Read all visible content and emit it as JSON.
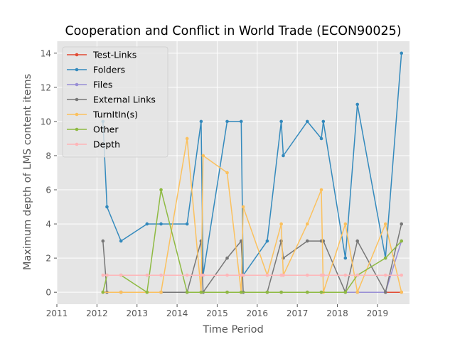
{
  "chart_data": {
    "type": "line",
    "title": "Cooperation and Conflict in World Trade (ECON90025)",
    "xlabel": "Time Period",
    "ylabel": "Maximum depth of LMS content items",
    "xlim": [
      2011,
      2019.8
    ],
    "ylim": [
      -0.7,
      14.7
    ],
    "x_ticks": [
      2011,
      2012,
      2013,
      2014,
      2015,
      2016,
      2017,
      2018,
      2019
    ],
    "x_tick_labels": [
      "2011",
      "2012",
      "2013",
      "2014",
      "2015",
      "2016",
      "2017",
      "2018",
      "2019"
    ],
    "y_ticks": [
      0,
      2,
      4,
      6,
      8,
      10,
      12,
      14
    ],
    "y_tick_labels": [
      "0",
      "2",
      "4",
      "6",
      "8",
      "10",
      "12",
      "14"
    ],
    "grid": true,
    "legend_position": "top-left",
    "plot_background": "#e5e5e5",
    "series": [
      {
        "name": "Test-Links",
        "color": "#e24a33",
        "x": [
          2012.15,
          2012.6,
          2013.25,
          2013.6,
          2014.25,
          2014.6,
          2015.25,
          2015.6,
          2016.25,
          2016.6,
          2017.25,
          2017.6,
          2018.2,
          2018.5,
          2019.2,
          2019.6
        ],
        "y": [
          0,
          0,
          0,
          0,
          0,
          0,
          0,
          0,
          0,
          0,
          0,
          0,
          0,
          0,
          0,
          0
        ]
      },
      {
        "name": "Folders",
        "color": "#348abd",
        "x": [
          2012.15,
          2012.25,
          2012.6,
          2013.25,
          2013.6,
          2014.25,
          2014.6,
          2014.65,
          2015.25,
          2015.6,
          2015.65,
          2016.25,
          2016.6,
          2016.65,
          2017.25,
          2017.6,
          2017.65,
          2018.2,
          2018.5,
          2019.2,
          2019.6
        ],
        "y": [
          10,
          5,
          3,
          4,
          4,
          4,
          10,
          1,
          10,
          10,
          1,
          3,
          10,
          8,
          10,
          9,
          10,
          2,
          11,
          2,
          14
        ]
      },
      {
        "name": "Files",
        "color": "#988ed5",
        "x": [
          2012.15,
          2012.6,
          2013.25,
          2013.6,
          2014.25,
          2014.6,
          2015.25,
          2015.6,
          2016.25,
          2016.6,
          2017.25,
          2017.6,
          2018.2,
          2018.5,
          2019.2,
          2019.6
        ],
        "y": [
          0,
          0,
          0,
          0,
          0,
          0,
          0,
          0,
          0,
          0,
          0,
          0,
          0,
          0,
          0,
          3
        ]
      },
      {
        "name": "External Links",
        "color": "#777777",
        "x": [
          2012.15,
          2012.25,
          2012.6,
          2013.25,
          2013.6,
          2014.25,
          2014.6,
          2014.65,
          2015.25,
          2015.6,
          2015.65,
          2016.25,
          2016.6,
          2016.65,
          2017.25,
          2017.6,
          2017.65,
          2018.2,
          2018.5,
          2019.2,
          2019.6
        ],
        "y": [
          3,
          0,
          0,
          0,
          0,
          0,
          3,
          0,
          2,
          3,
          0,
          0,
          3,
          2,
          3,
          3,
          3,
          0,
          3,
          0,
          4
        ]
      },
      {
        "name": "TurnItIn(s)",
        "color": "#fbc15e",
        "x": [
          2012.15,
          2012.6,
          2013.25,
          2013.6,
          2014.25,
          2014.6,
          2014.65,
          2015.25,
          2015.6,
          2015.65,
          2016.25,
          2016.6,
          2016.65,
          2017.25,
          2017.6,
          2017.65,
          2018.2,
          2018.5,
          2019.2,
          2019.6
        ],
        "y": [
          0,
          0,
          0,
          0,
          9,
          0,
          8,
          7,
          0,
          5,
          1,
          4,
          1,
          4,
          6,
          0,
          4,
          0,
          4,
          0
        ]
      },
      {
        "name": "Other",
        "color": "#8eba42",
        "x": [
          2012.15,
          2012.25,
          2012.6,
          2013.25,
          2013.6,
          2014.25,
          2014.6,
          2015.25,
          2015.6,
          2016.25,
          2016.6,
          2017.25,
          2017.6,
          2018.2,
          2018.5,
          2019.2,
          2019.6
        ],
        "y": [
          0,
          1,
          1,
          0,
          6,
          0,
          0,
          0,
          0,
          0,
          0,
          0,
          0,
          0,
          1,
          2,
          3
        ]
      },
      {
        "name": "Depth",
        "color": "#ffb5b8",
        "x": [
          2012.15,
          2012.25,
          2012.6,
          2013.25,
          2013.6,
          2014.25,
          2014.6,
          2014.65,
          2015.25,
          2015.6,
          2015.65,
          2016.25,
          2016.6,
          2016.65,
          2017.25,
          2017.6,
          2017.65,
          2018.2,
          2018.5,
          2019.2,
          2019.6
        ],
        "y": [
          1,
          1,
          1,
          1,
          1,
          1,
          1,
          1,
          1,
          1,
          1,
          1,
          1,
          1,
          1,
          1,
          1,
          1,
          1,
          1,
          1
        ]
      }
    ]
  }
}
